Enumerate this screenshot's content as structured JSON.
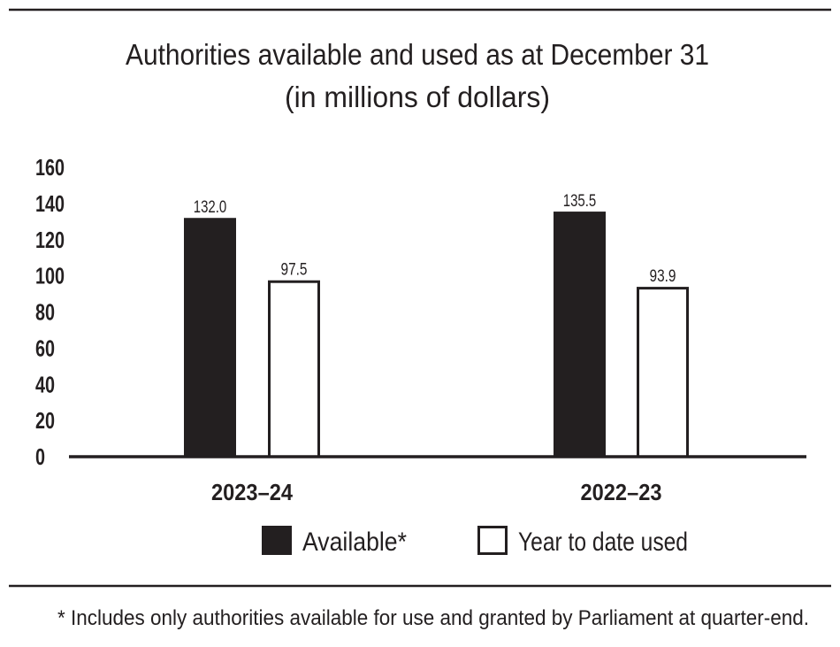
{
  "chart_data": {
    "type": "bar",
    "title": "Authorities available and used as at December 31",
    "subtitle": "(in millions of dollars)",
    "categories": [
      "2023–24",
      "2022–23"
    ],
    "series": [
      {
        "name": "Available*",
        "values": [
          132.0,
          135.5
        ],
        "color": "#231f20"
      },
      {
        "name": "Year to date used",
        "values": [
          97.5,
          93.9
        ],
        "color": "#ffffff"
      }
    ],
    "data_labels": [
      [
        "132.0",
        "135.5"
      ],
      [
        "97.5",
        "93.9"
      ]
    ],
    "yticks": [
      "0",
      "20",
      "40",
      "60",
      "80",
      "100",
      "120",
      "140",
      "160"
    ],
    "ylim": [
      0,
      160
    ],
    "grid": false,
    "legend_placement": "bottom",
    "footnote": "* Includes only authorities available for use and granted by Parliament at quarter-end."
  }
}
